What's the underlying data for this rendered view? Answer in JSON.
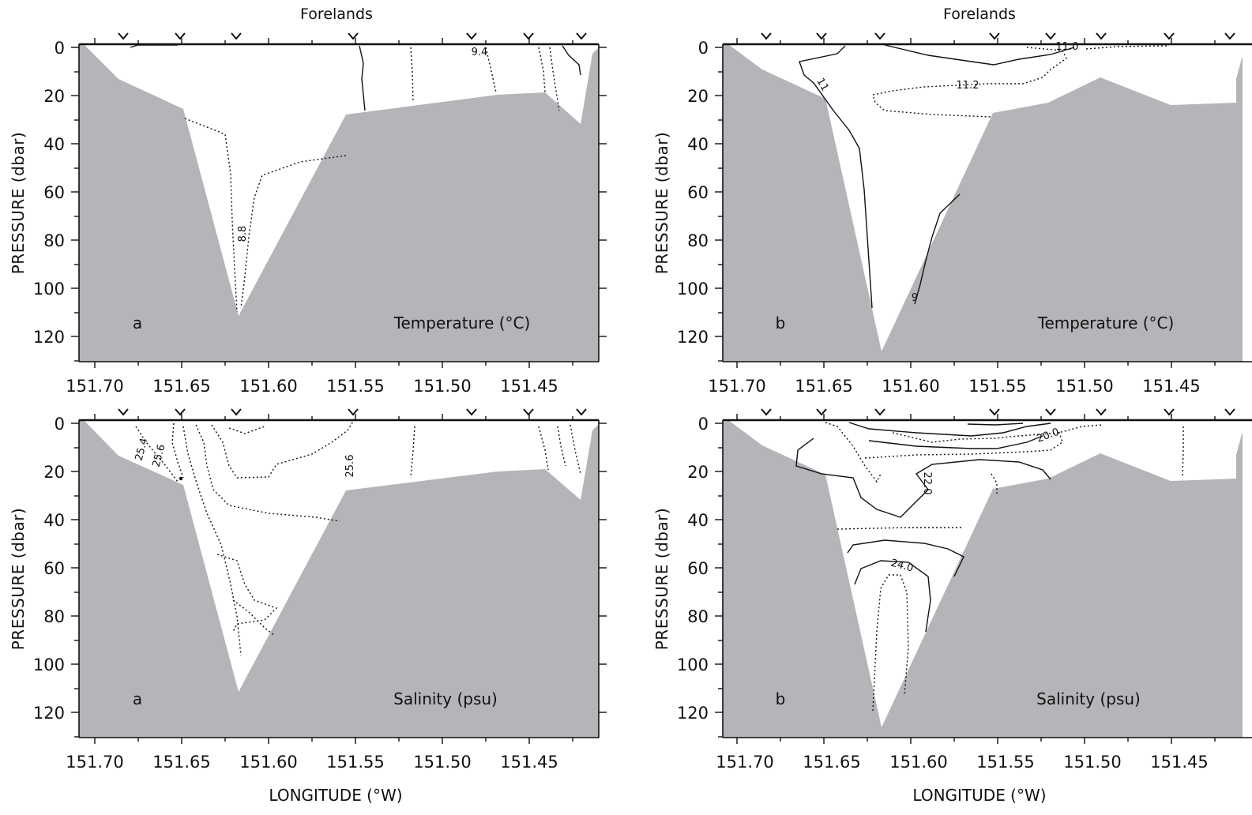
{
  "figure": {
    "panels": [
      {
        "id": "temp-a",
        "letter": "a",
        "field": "Temperature (°C)",
        "top_title": "Forelands",
        "x_ticks": [
          "151.70",
          "151.65",
          "151.60",
          "151.55",
          "151.50",
          "151.45"
        ],
        "y_ticks": [
          "0",
          "20",
          "40",
          "60",
          "80",
          "100",
          "120"
        ],
        "ylabel": "PRESSURE (dbar)",
        "contour_labels": [
          "9.4",
          "8.8"
        ]
      },
      {
        "id": "temp-b",
        "letter": "b",
        "field": "Temperature (°C)",
        "top_title": "Forelands",
        "x_ticks": [
          "151.70",
          "151.65",
          "151.60",
          "151.55",
          "151.50",
          "151.45"
        ],
        "y_ticks": [
          "0",
          "20",
          "40",
          "60",
          "80",
          "100",
          "120"
        ],
        "ylabel": "PRESSURE (dbar)",
        "contour_labels": [
          "11.0",
          "11.2",
          "11",
          "9"
        ]
      },
      {
        "id": "sal-a",
        "letter": "a",
        "field": "Salinity (psu)",
        "x_ticks": [
          "151.70",
          "151.65",
          "151.60",
          "151.55",
          "151.50",
          "151.45"
        ],
        "y_ticks": [
          "0",
          "20",
          "40",
          "60",
          "80",
          "100",
          "120"
        ],
        "ylabel": "PRESSURE (dbar)",
        "xlabel": "LONGITUDE (°W)",
        "contour_labels": [
          "25.4",
          "25.6",
          "25.6"
        ]
      },
      {
        "id": "sal-b",
        "letter": "b",
        "field": "Salinity (psu)",
        "x_ticks": [
          "151.70",
          "151.65",
          "151.60",
          "151.55",
          "151.50",
          "151.45"
        ],
        "y_ticks": [
          "0",
          "20",
          "40",
          "60",
          "80",
          "100",
          "120"
        ],
        "ylabel": "PRESSURE (dbar)",
        "xlabel": "LONGITUDE (°W)",
        "contour_labels": [
          "20.0",
          "22.0",
          "24.0"
        ]
      }
    ],
    "colors": {
      "bathymetry": "#b4b5b8",
      "line": "#111111",
      "background": "#ffffff"
    }
  }
}
